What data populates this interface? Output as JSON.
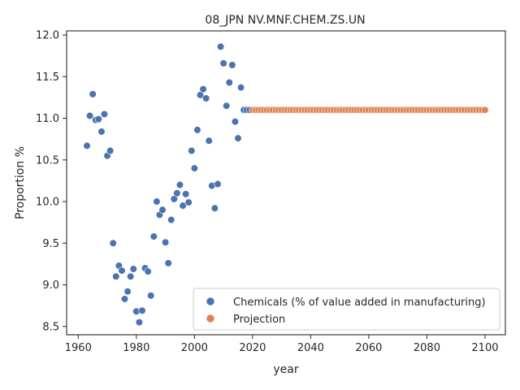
{
  "chart_data": {
    "type": "scatter",
    "title": "08_JPN NV.MNF.CHEM.ZS.UN",
    "xlabel": "year",
    "ylabel": "Proportion %",
    "xlim": [
      1956,
      2107
    ],
    "ylim": [
      8.4,
      12.05
    ],
    "xticks": [
      1960,
      1980,
      2000,
      2020,
      2040,
      2060,
      2080,
      2100
    ],
    "yticks": [
      8.5,
      9.0,
      9.5,
      10.0,
      10.5,
      11.0,
      11.5,
      12.0
    ],
    "grid": false,
    "legend_position": "lower-right",
    "series": [
      {
        "name": "Chemicals (% of value added in manufacturing)",
        "color": "#4c72b0",
        "x": [
          1963,
          1964,
          1965,
          1966,
          1967,
          1968,
          1969,
          1970,
          1971,
          1972,
          1973,
          1974,
          1975,
          1976,
          1977,
          1978,
          1979,
          1980,
          1981,
          1982,
          1983,
          1984,
          1985,
          1986,
          1987,
          1988,
          1989,
          1990,
          1991,
          1992,
          1993,
          1994,
          1995,
          1996,
          1997,
          1998,
          1999,
          2000,
          2001,
          2002,
          2003,
          2004,
          2005,
          2006,
          2007,
          2008,
          2009,
          2010,
          2011,
          2012,
          2013,
          2014,
          2015,
          2016,
          2017,
          2018,
          2019
        ],
        "y": [
          10.67,
          11.03,
          11.29,
          10.98,
          10.99,
          10.84,
          11.05,
          10.55,
          10.61,
          9.5,
          9.1,
          9.23,
          9.17,
          8.83,
          8.92,
          9.1,
          9.19,
          8.68,
          8.55,
          8.69,
          9.2,
          9.16,
          8.87,
          9.58,
          10.0,
          9.84,
          9.9,
          9.51,
          9.26,
          9.78,
          10.03,
          10.1,
          10.2,
          9.95,
          10.09,
          9.99,
          10.61,
          10.4,
          10.86,
          11.28,
          11.35,
          11.24,
          10.73,
          10.19,
          9.92,
          10.21,
          11.86,
          11.66,
          11.15,
          11.43,
          11.64,
          10.96,
          10.76,
          11.37,
          11.1,
          11.1,
          11.1
        ]
      },
      {
        "name": "Projection",
        "color": "#dd8452",
        "x_start": 2020,
        "x_end": 2100,
        "x_step": 1,
        "y_constant": 11.1
      }
    ]
  }
}
